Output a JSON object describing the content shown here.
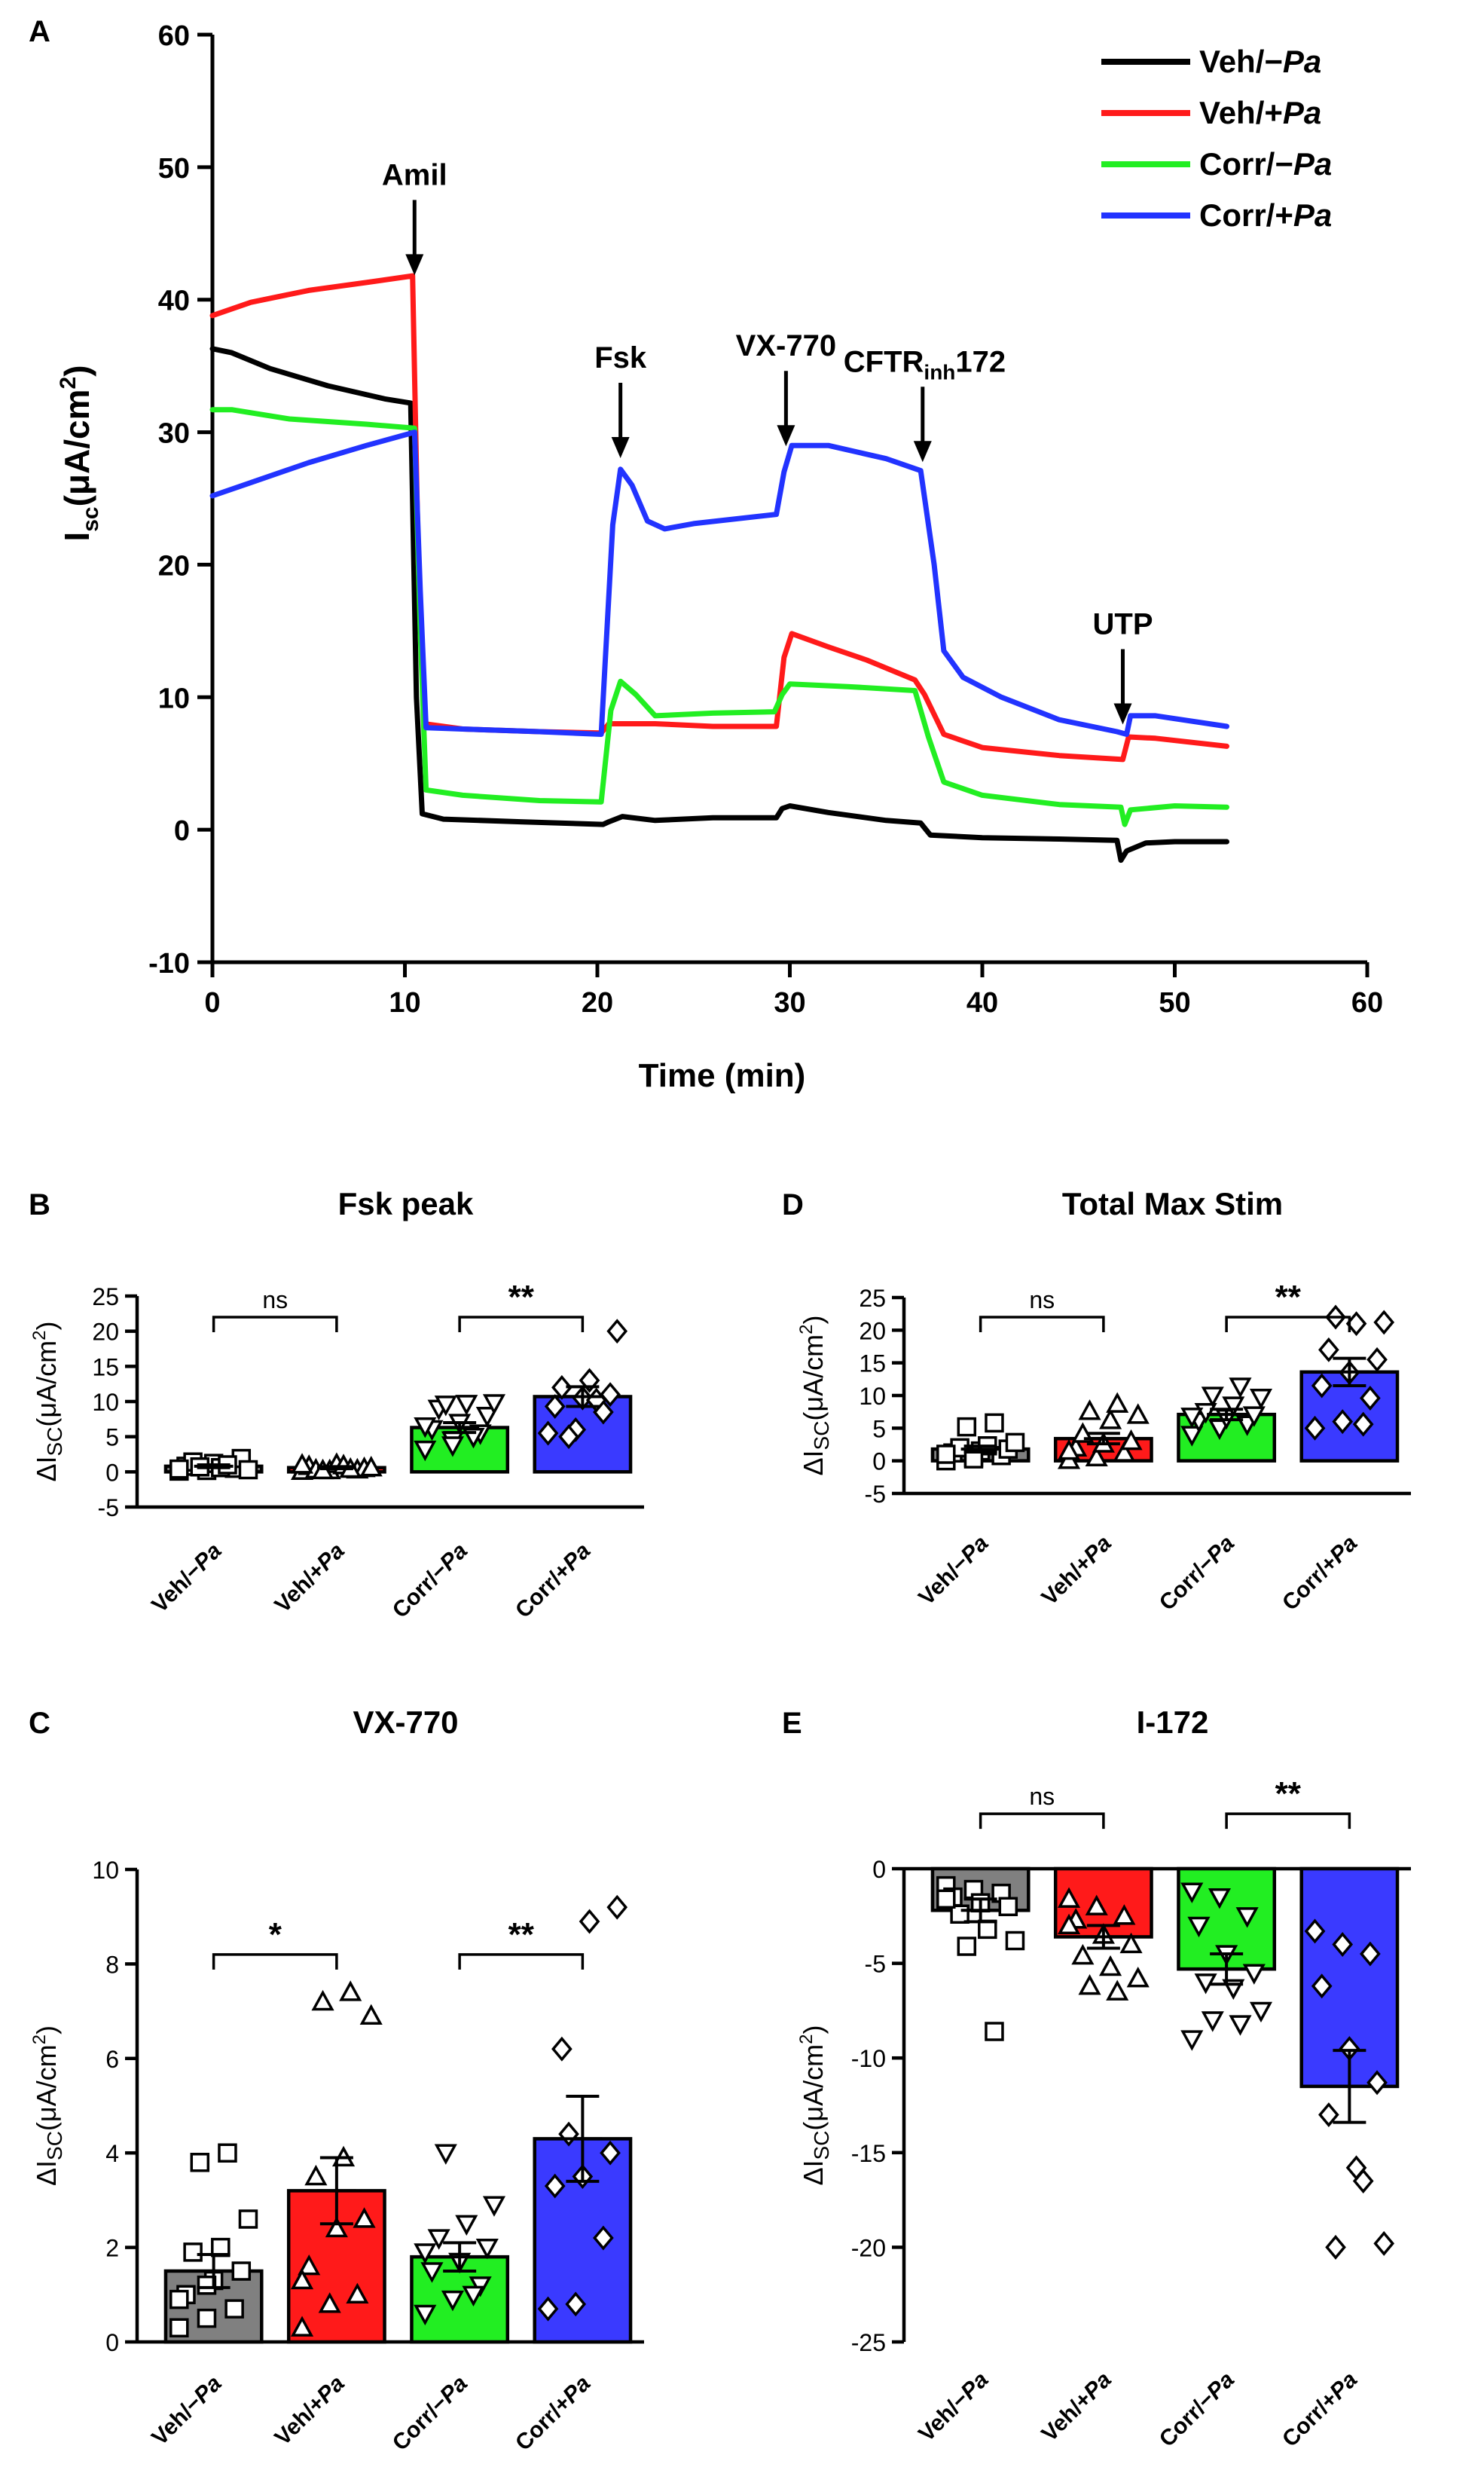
{
  "colors": {
    "veh_minus": "#000000",
    "veh_plus": "#ff1a1a",
    "corr_minus": "#22ee22",
    "corr_plus": "#2233ff",
    "bar_veh_minus": "#808080",
    "bar_veh_plus": "#ff1a1a",
    "bar_corr_minus": "#22ee22",
    "bar_corr_plus": "#3a3aff"
  },
  "chart_data": [
    {
      "panel": "A",
      "type": "line",
      "title": "",
      "xlabel": "Time (min)",
      "ylabel_main": "I",
      "ylabel_sub": "sc",
      "ylabel_rest": "(μA/cm",
      "ylabel_sup": "2",
      "ylabel_close": ")",
      "xlim": [
        0,
        60
      ],
      "ylim": [
        -10,
        60
      ],
      "xticks": [
        0,
        10,
        20,
        30,
        40,
        50,
        60
      ],
      "yticks": [
        -10,
        0,
        10,
        20,
        30,
        40,
        50,
        60
      ],
      "legend_position": "top-right",
      "series": [
        {
          "name": "Veh/−Pa",
          "name_plain": "Veh/−",
          "name_italic": "Pa",
          "color_key": "veh_minus",
          "points": [
            [
              0,
              36.3
            ],
            [
              1,
              36
            ],
            [
              3,
              34.8
            ],
            [
              6,
              33.5
            ],
            [
              9,
              32.5
            ],
            [
              10.3,
              32.2
            ],
            [
              10.6,
              10
            ],
            [
              10.9,
              1.2
            ],
            [
              12,
              0.8
            ],
            [
              16,
              0.6
            ],
            [
              20.3,
              0.4
            ],
            [
              20.6,
              0.6
            ],
            [
              21.3,
              1
            ],
            [
              23,
              0.7
            ],
            [
              26,
              0.9
            ],
            [
              29.3,
              0.9
            ],
            [
              29.6,
              1.6
            ],
            [
              30,
              1.8
            ],
            [
              32,
              1.3
            ],
            [
              35,
              0.7
            ],
            [
              36.8,
              0.5
            ],
            [
              37.3,
              -0.4
            ],
            [
              40,
              -0.6
            ],
            [
              44,
              -0.7
            ],
            [
              47,
              -0.8
            ],
            [
              47.2,
              -2.3
            ],
            [
              47.5,
              -1.6
            ],
            [
              48.5,
              -1
            ],
            [
              50,
              -0.9
            ],
            [
              52.7,
              -0.9
            ]
          ]
        },
        {
          "name": "Veh/+Pa",
          "name_plain": "Veh/+",
          "name_italic": "Pa",
          "color_key": "veh_plus",
          "points": [
            [
              0,
              38.8
            ],
            [
              2,
              39.8
            ],
            [
              5,
              40.7
            ],
            [
              8,
              41.3
            ],
            [
              10.4,
              41.8
            ],
            [
              10.7,
              20
            ],
            [
              11,
              8
            ],
            [
              13,
              7.6
            ],
            [
              17,
              7.4
            ],
            [
              20.2,
              7.3
            ],
            [
              20.6,
              8
            ],
            [
              23,
              8
            ],
            [
              26,
              7.8
            ],
            [
              29.3,
              7.8
            ],
            [
              29.7,
              13
            ],
            [
              30.1,
              14.8
            ],
            [
              32,
              13.8
            ],
            [
              34,
              12.8
            ],
            [
              36.5,
              11.3
            ],
            [
              37,
              10.2
            ],
            [
              38,
              7.2
            ],
            [
              40,
              6.2
            ],
            [
              44,
              5.6
            ],
            [
              47.3,
              5.3
            ],
            [
              47.6,
              7
            ],
            [
              49,
              6.9
            ],
            [
              52.7,
              6.3
            ]
          ]
        },
        {
          "name": "Corr/−Pa",
          "name_plain": "Corr/−",
          "name_italic": "Pa",
          "color_key": "corr_minus",
          "points": [
            [
              0,
              31.7
            ],
            [
              1,
              31.7
            ],
            [
              4,
              31
            ],
            [
              8,
              30.6
            ],
            [
              10.5,
              30.3
            ],
            [
              10.8,
              15
            ],
            [
              11.1,
              3
            ],
            [
              13,
              2.6
            ],
            [
              17,
              2.2
            ],
            [
              20.2,
              2.1
            ],
            [
              20.7,
              9
            ],
            [
              21.2,
              11.2
            ],
            [
              22,
              10.2
            ],
            [
              23,
              8.6
            ],
            [
              26,
              8.8
            ],
            [
              29.2,
              8.9
            ],
            [
              29.6,
              10.2
            ],
            [
              30,
              11
            ],
            [
              33,
              10.8
            ],
            [
              36.5,
              10.5
            ],
            [
              37.2,
              7
            ],
            [
              38,
              3.6
            ],
            [
              40,
              2.6
            ],
            [
              44,
              1.9
            ],
            [
              47.2,
              1.7
            ],
            [
              47.4,
              0.4
            ],
            [
              47.7,
              1.5
            ],
            [
              50,
              1.8
            ],
            [
              52.7,
              1.7
            ]
          ]
        },
        {
          "name": "Corr/+Pa",
          "name_plain": "Corr/+",
          "name_italic": "Pa",
          "color_key": "corr_plus",
          "points": [
            [
              0,
              25.2
            ],
            [
              2,
              26.2
            ],
            [
              5,
              27.7
            ],
            [
              8,
              29
            ],
            [
              10.5,
              30
            ],
            [
              10.8,
              18
            ],
            [
              11.1,
              7.7
            ],
            [
              13,
              7.6
            ],
            [
              17,
              7.4
            ],
            [
              20.2,
              7.2
            ],
            [
              20.8,
              23
            ],
            [
              21.2,
              27.2
            ],
            [
              21.8,
              26
            ],
            [
              22.6,
              23.3
            ],
            [
              23.5,
              22.7
            ],
            [
              25,
              23.1
            ],
            [
              29.3,
              23.8
            ],
            [
              29.7,
              27
            ],
            [
              30.1,
              29
            ],
            [
              32,
              29
            ],
            [
              35,
              28
            ],
            [
              36.8,
              27.1
            ],
            [
              37.5,
              20
            ],
            [
              38,
              13.5
            ],
            [
              39,
              11.5
            ],
            [
              41,
              10
            ],
            [
              44,
              8.3
            ],
            [
              47,
              7.4
            ],
            [
              47.5,
              7.2
            ],
            [
              47.7,
              8.6
            ],
            [
              49,
              8.6
            ],
            [
              52.7,
              7.8
            ]
          ]
        }
      ],
      "annotations": [
        {
          "label": "Amil",
          "x": 10.5,
          "y": 41.5
        },
        {
          "label": "Fsk",
          "x": 21.2,
          "y": 27.7
        },
        {
          "label": "VX-770",
          "x": 29.8,
          "y": 28.6
        },
        {
          "label_main": "CFTR",
          "label_sub": "inh",
          "label_tail": "172",
          "x": 36.9,
          "y": 27.4
        },
        {
          "label": "UTP",
          "x": 47.3,
          "y": 7.6
        }
      ]
    },
    {
      "panel": "B",
      "type": "bar",
      "title": "Fsk peak",
      "ylabel_main": "ΔI",
      "ylabel_sub": "SC",
      "ylabel_rest": "(μA/cm",
      "ylabel_sup": "2",
      "ylabel_close": ")",
      "ylim": [
        -5,
        25
      ],
      "yticks": [
        -5,
        0,
        5,
        10,
        15,
        20,
        25
      ],
      "categories": [
        "Veh/−Pa",
        "Veh/+Pa",
        "Corr/−Pa",
        "Corr/+Pa"
      ],
      "category_parts": [
        [
          "Veh/−",
          "Pa"
        ],
        [
          "Veh/+",
          "Pa"
        ],
        [
          "Corr/−",
          "Pa"
        ],
        [
          "Corr/+",
          "Pa"
        ]
      ],
      "values": [
        0.8,
        0.6,
        6.3,
        10.7
      ],
      "sem": [
        0.2,
        0.15,
        0.7,
        1.4
      ],
      "points": [
        [
          0.1,
          0.2,
          0.5,
          0.8,
          1.2,
          1.9,
          1.4,
          0.6,
          0.3,
          0.7,
          1.0,
          0.4
        ],
        [
          0.1,
          0.2,
          0.3,
          0.8,
          1.1,
          0.5,
          0.3,
          0.9,
          0.6,
          0.2,
          0.4,
          1.0
        ],
        [
          3.2,
          4.5,
          5.5,
          6.1,
          7.0,
          8.0,
          9.0,
          9.7,
          9.8,
          9.6,
          5.0,
          6.5,
          3.8
        ],
        [
          5.5,
          6.0,
          8.5,
          9.3,
          10.5,
          11.0,
          12.0,
          13.0,
          20.0,
          5.0,
          10.2
        ]
      ],
      "brackets": [
        {
          "from": 0,
          "to": 1,
          "label": "ns",
          "y": 22
        },
        {
          "from": 2,
          "to": 3,
          "label": "**",
          "y": 22
        }
      ]
    },
    {
      "panel": "C",
      "type": "bar",
      "title": "VX-770",
      "ylabel_main": "ΔI",
      "ylabel_sub": "SC",
      "ylabel_rest": "(μA/cm",
      "ylabel_sup": "2",
      "ylabel_close": ")",
      "ylim": [
        0,
        10
      ],
      "yticks": [
        0,
        2,
        4,
        6,
        8,
        10
      ],
      "categories": [
        "Veh/−Pa",
        "Veh/+Pa",
        "Corr/−Pa",
        "Corr/+Pa"
      ],
      "category_parts": [
        [
          "Veh/−",
          "Pa"
        ],
        [
          "Veh/+",
          "Pa"
        ],
        [
          "Corr/−",
          "Pa"
        ],
        [
          "Corr/+",
          "Pa"
        ]
      ],
      "values": [
        1.5,
        3.2,
        1.8,
        4.3
      ],
      "sem": [
        0.35,
        0.7,
        0.3,
        0.9
      ],
      "points": [
        [
          0.3,
          0.5,
          0.7,
          1.0,
          1.3,
          1.5,
          1.9,
          2.0,
          2.6,
          3.8,
          4.0,
          0.9,
          1.2
        ],
        [
          0.3,
          0.8,
          1.0,
          1.6,
          2.4,
          2.6,
          3.5,
          3.9,
          6.9,
          7.2,
          7.4,
          1.3
        ],
        [
          0.6,
          0.9,
          1.2,
          1.5,
          1.7,
          2.0,
          2.2,
          2.5,
          2.9,
          4.0,
          1.0,
          1.9
        ],
        [
          0.7,
          0.8,
          2.2,
          3.3,
          3.5,
          4.0,
          6.2,
          8.9,
          9.2,
          4.4
        ]
      ],
      "brackets": [
        {
          "from": 0,
          "to": 1,
          "label": "*",
          "y": 8.2
        },
        {
          "from": 2,
          "to": 3,
          "label": "**",
          "y": 8.2
        }
      ]
    },
    {
      "panel": "D",
      "type": "bar",
      "title": "Total  Max Stim",
      "ylabel_main": "ΔI",
      "ylabel_sub": "SC",
      "ylabel_rest": "(μA/cm",
      "ylabel_sup": "2",
      "ylabel_close": ")",
      "ylim": [
        -5,
        25
      ],
      "yticks": [
        -5,
        0,
        5,
        10,
        15,
        20,
        25
      ],
      "categories": [
        "Veh/−Pa",
        "Veh/+Pa",
        "Corr/−Pa",
        "Corr/+Pa"
      ],
      "category_parts": [
        [
          "Veh/−",
          "Pa"
        ],
        [
          "Veh/+",
          "Pa"
        ],
        [
          "Corr/−",
          "Pa"
        ],
        [
          "Corr/+",
          "Pa"
        ]
      ],
      "values": [
        1.8,
        3.4,
        7.1,
        13.6
      ],
      "sem": [
        0.45,
        0.8,
        0.8,
        2.1
      ],
      "points": [
        [
          0.0,
          0.5,
          0.8,
          1.2,
          1.5,
          1.8,
          2.0,
          2.3,
          2.8,
          5.2,
          5.8,
          1.0,
          0.3
        ],
        [
          0.1,
          0.5,
          1.2,
          2.0,
          2.6,
          3.0,
          4.1,
          6.2,
          7.0,
          7.6,
          8.7,
          1.5
        ],
        [
          4.0,
          5.0,
          5.6,
          6.1,
          6.6,
          7.0,
          7.5,
          8.5,
          9.7,
          10.0,
          11.4,
          6.8
        ],
        [
          5.0,
          6.0,
          9.6,
          11.5,
          13.5,
          15.5,
          17.0,
          21.0,
          21.2,
          22.0,
          5.6
        ]
      ],
      "brackets": [
        {
          "from": 0,
          "to": 1,
          "label": "ns",
          "y": 22
        },
        {
          "from": 2,
          "to": 3,
          "label": "**",
          "y": 22
        }
      ]
    },
    {
      "panel": "E",
      "type": "bar",
      "title": "I-172",
      "ylabel_main": "ΔI",
      "ylabel_sub": "SC",
      "ylabel_rest": "(μA/cm",
      "ylabel_sup": "2",
      "ylabel_close": ")",
      "ylim": [
        -25,
        0
      ],
      "yticks": [
        -25,
        -20,
        -15,
        -10,
        -5,
        0
      ],
      "categories": [
        "Veh/−Pa",
        "Veh/+Pa",
        "Corr/−Pa",
        "Corr/+Pa"
      ],
      "category_parts": [
        [
          "Veh/−",
          "Pa"
        ],
        [
          "Veh/+",
          "Pa"
        ],
        [
          "Corr/−",
          "Pa"
        ],
        [
          "Corr/+",
          "Pa"
        ]
      ],
      "values": [
        -2.2,
        -3.6,
        -5.3,
        -11.5
      ],
      "sem": [
        0.6,
        0.6,
        0.8,
        1.9
      ],
      "points": [
        [
          -0.9,
          -1.1,
          -1.3,
          -1.5,
          -1.8,
          -2.0,
          -2.4,
          -3.2,
          -3.8,
          -4.1,
          -8.6,
          -1.6
        ],
        [
          -1.6,
          -2.0,
          -2.5,
          -2.7,
          -3.5,
          -4.0,
          -4.6,
          -5.2,
          -5.8,
          -6.2,
          -6.5,
          -3.0
        ],
        [
          -1.2,
          -1.5,
          -2.5,
          -3.0,
          -4.5,
          -5.5,
          -6.0,
          -6.3,
          -7.5,
          -8.0,
          -8.2,
          -9.0
        ],
        [
          -3.3,
          -4.0,
          -4.5,
          -6.2,
          -9.5,
          -11.3,
          -13.0,
          -15.8,
          -19.8,
          -20.0,
          -16.5
        ]
      ],
      "brackets": [
        {
          "from": 0,
          "to": 1,
          "label": "ns",
          "y": 2.9
        },
        {
          "from": 2,
          "to": 3,
          "label": "**",
          "y": 2.9
        }
      ]
    }
  ]
}
